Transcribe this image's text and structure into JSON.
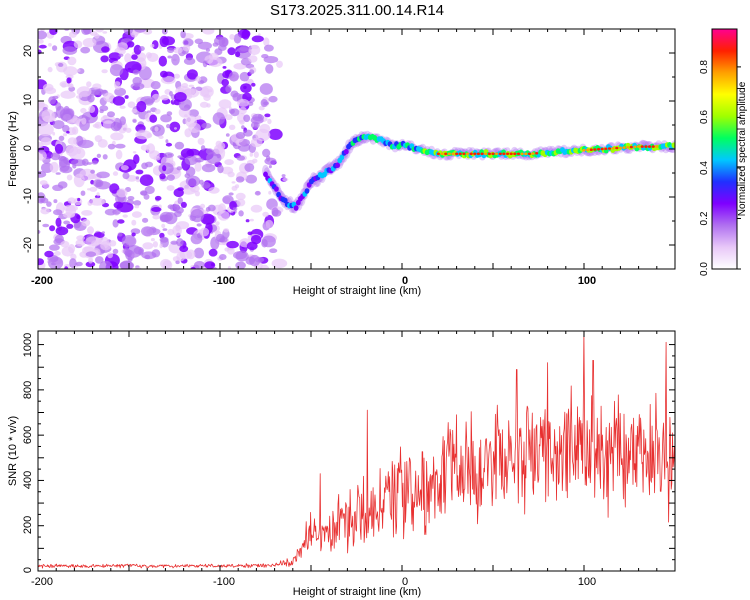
{
  "title": "S173.2025.311.00.14.R14",
  "chart_data": [
    {
      "type": "heatmap",
      "xlabel": "Height of straight line (km)",
      "ylabel": "Frequency (Hz)",
      "xlim": [
        -200,
        150
      ],
      "ylim": [
        -25,
        25
      ],
      "xticks": [
        -200,
        -100,
        0,
        100
      ],
      "xtick_labels": [
        "-200",
        "-100",
        "0",
        "100"
      ],
      "yticks": [
        -20,
        -10,
        0,
        10,
        20
      ],
      "ytick_labels": [
        "-20",
        "-10",
        "0",
        "10",
        "20"
      ],
      "noise_region_km": [
        -200,
        -62
      ],
      "ridge": {
        "x": [
          -75,
          -65,
          -58,
          -50,
          -42,
          -35,
          -28,
          -20,
          -12,
          -5,
          0,
          10,
          20,
          30,
          50,
          70,
          90,
          110,
          130,
          150
        ],
        "y": [
          -5,
          -11,
          -12,
          -7,
          -5,
          -3,
          1,
          2.5,
          2,
          0.5,
          1,
          0,
          -1,
          -1,
          -1,
          -1,
          -0.5,
          0,
          0.5,
          0.5
        ]
      },
      "colorbar": {
        "label": "Normalized spectral amplitude",
        "range": [
          0,
          0.95
        ],
        "ticks": [
          0,
          0.2,
          0.4,
          0.6,
          0.8
        ],
        "tick_labels": [
          "0.0",
          "0.2",
          "0.4",
          "0.6",
          "0.8"
        ],
        "colors": [
          "#ffffff",
          "#e8c8f8",
          "#b070f0",
          "#7f00ff",
          "#2030ff",
          "#00c8ff",
          "#00ff60",
          "#a0ff00",
          "#ffff00",
          "#ffa000",
          "#ff2000",
          "#ff0090"
        ]
      }
    },
    {
      "type": "line",
      "xlabel": "Height of straight line (km)",
      "ylabel": "SNR (10 * v/v)",
      "xlim": [
        -200,
        150
      ],
      "ylim": [
        0,
        1060
      ],
      "xticks": [
        -200,
        -100,
        0,
        100
      ],
      "xtick_labels": [
        "-200",
        "-100",
        "0",
        "100"
      ],
      "yticks": [
        0,
        200,
        400,
        600,
        800,
        1000
      ],
      "ytick_labels": [
        "0",
        "200",
        "400",
        "600",
        "800",
        "1000"
      ],
      "series_color": "#e83030",
      "envelope": {
        "x": [
          -200,
          -100,
          -70,
          -60,
          -55,
          -50,
          -45,
          -40,
          -30,
          -20,
          -10,
          0,
          20,
          40,
          60,
          80,
          100,
          120,
          150
        ],
        "mean": [
          22,
          22,
          25,
          40,
          90,
          200,
          160,
          170,
          230,
          280,
          320,
          360,
          420,
          480,
          500,
          520,
          520,
          510,
          500
        ],
        "amplitude": [
          10,
          10,
          12,
          25,
          60,
          120,
          90,
          110,
          170,
          200,
          220,
          240,
          260,
          280,
          300,
          300,
          300,
          300,
          300
        ]
      },
      "peaks": [
        {
          "x": -45,
          "y": 430
        },
        {
          "x": -19,
          "y": 710
        },
        {
          "x": 30,
          "y": 690
        },
        {
          "x": 63,
          "y": 890
        },
        {
          "x": 80,
          "y": 920
        },
        {
          "x": 100,
          "y": 1060
        },
        {
          "x": 105,
          "y": 930
        },
        {
          "x": 145,
          "y": 1010
        }
      ]
    }
  ]
}
